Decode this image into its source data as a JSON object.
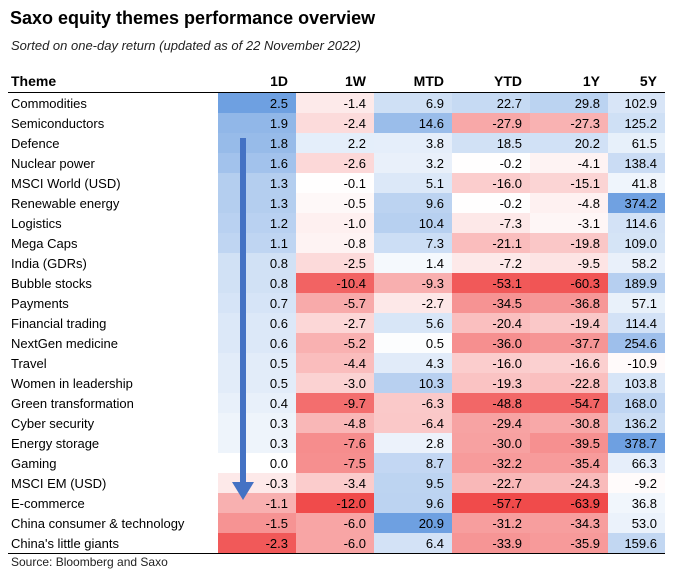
{
  "title": "Saxo equity themes performance overview",
  "subtitle": "Sorted on one-day return (updated as of 22 November 2022)",
  "source": "Source: Bloomberg and Saxo",
  "colors": {
    "positive": "#4a90d9",
    "negative": "#ee3b3b",
    "arrow": "#4472c4"
  },
  "chart_data": {
    "type": "heatmap",
    "columns": [
      "Theme",
      "1D",
      "1W",
      "MTD",
      "YTD",
      "1Y",
      "5Y"
    ],
    "rows": [
      {
        "theme": "Commodities",
        "values": [
          2.5,
          -1.4,
          6.9,
          22.7,
          29.8,
          102.9
        ]
      },
      {
        "theme": "Semiconductors",
        "values": [
          1.9,
          -2.4,
          14.6,
          -27.9,
          -27.3,
          125.2
        ]
      },
      {
        "theme": "Defence",
        "values": [
          1.8,
          2.2,
          3.8,
          18.5,
          20.2,
          61.5
        ]
      },
      {
        "theme": "Nuclear power",
        "values": [
          1.6,
          -2.6,
          3.2,
          -0.2,
          -4.1,
          138.4
        ]
      },
      {
        "theme": "MSCI World (USD)",
        "values": [
          1.3,
          -0.1,
          5.1,
          -16.0,
          -15.1,
          41.8
        ]
      },
      {
        "theme": "Renewable energy",
        "values": [
          1.3,
          -0.5,
          9.6,
          -0.2,
          -4.8,
          374.2
        ]
      },
      {
        "theme": "Logistics",
        "values": [
          1.2,
          -1.0,
          10.4,
          -7.3,
          -3.1,
          114.6
        ]
      },
      {
        "theme": "Mega Caps",
        "values": [
          1.1,
          -0.8,
          7.3,
          -21.1,
          -19.8,
          109.0
        ]
      },
      {
        "theme": "India (GDRs)",
        "values": [
          0.8,
          -2.5,
          1.4,
          -7.2,
          -9.5,
          58.2
        ]
      },
      {
        "theme": "Bubble stocks",
        "values": [
          0.8,
          -10.4,
          -9.3,
          -53.1,
          -60.3,
          189.9
        ]
      },
      {
        "theme": "Payments",
        "values": [
          0.7,
          -5.7,
          -2.7,
          -34.5,
          -36.8,
          57.1
        ]
      },
      {
        "theme": "Financial trading",
        "values": [
          0.6,
          -2.7,
          5.6,
          -20.4,
          -19.4,
          114.4
        ]
      },
      {
        "theme": "NextGen medicine",
        "values": [
          0.6,
          -5.2,
          0.5,
          -36.0,
          -37.7,
          254.6
        ]
      },
      {
        "theme": "Travel",
        "values": [
          0.5,
          -4.4,
          4.3,
          -16.0,
          -16.6,
          -10.9
        ]
      },
      {
        "theme": "Women in leadership",
        "values": [
          0.5,
          -3.0,
          10.3,
          -19.3,
          -22.8,
          103.8
        ]
      },
      {
        "theme": "Green transformation",
        "values": [
          0.4,
          -9.7,
          -6.3,
          -48.8,
          -54.7,
          168.0
        ]
      },
      {
        "theme": "Cyber security",
        "values": [
          0.3,
          -4.8,
          -6.4,
          -29.4,
          -30.8,
          136.2
        ]
      },
      {
        "theme": "Energy storage",
        "values": [
          0.3,
          -7.6,
          2.8,
          -30.0,
          -39.5,
          378.7
        ]
      },
      {
        "theme": "Gaming",
        "values": [
          0.0,
          -7.5,
          8.7,
          -32.2,
          -35.4,
          66.3
        ]
      },
      {
        "theme": "MSCI EM (USD)",
        "values": [
          -0.3,
          -3.4,
          9.5,
          -22.7,
          -24.3,
          -9.2
        ]
      },
      {
        "theme": "E-commerce",
        "values": [
          -1.1,
          -12.0,
          9.6,
          -57.7,
          -63.9,
          36.8
        ]
      },
      {
        "theme": "China consumer & technology",
        "values": [
          -1.5,
          -6.0,
          20.9,
          -31.2,
          -34.3,
          53.0
        ]
      },
      {
        "theme": "China's little giants",
        "values": [
          -2.3,
          -6.0,
          6.4,
          -33.9,
          -35.9,
          159.6
        ]
      }
    ]
  }
}
